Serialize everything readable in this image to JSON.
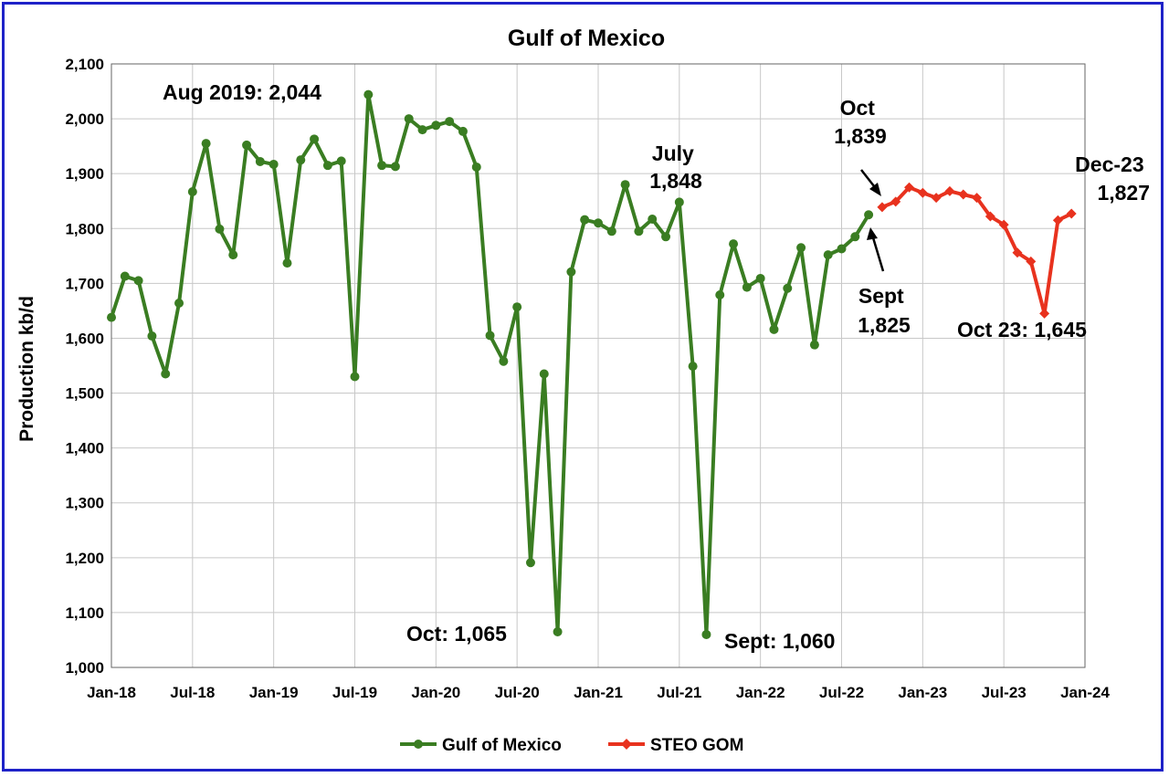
{
  "chart_data": {
    "type": "line",
    "title": "Gulf of Mexico",
    "ylabel": "Production kb/d",
    "xlabel": "",
    "ylim": [
      1000,
      2100
    ],
    "yticks": [
      "1,000",
      "1,100",
      "1,200",
      "1,300",
      "1,400",
      "1,500",
      "1,600",
      "1,700",
      "1,800",
      "1,900",
      "2,000",
      "2,100"
    ],
    "xticks": [
      "Jan-18",
      "Jul-18",
      "Jan-19",
      "Jul-19",
      "Jan-20",
      "Jul-20",
      "Jan-21",
      "Jul-21",
      "Jan-22",
      "Jul-22",
      "Jan-23",
      "Jul-23",
      "Jan-24"
    ],
    "grid": true,
    "legend_position": "bottom",
    "series": [
      {
        "name": "Gulf of Mexico",
        "color": "#3a7d22",
        "marker": "circle",
        "start": "Jan-18",
        "values": [
          1638,
          1713,
          1705,
          1604,
          1535,
          1664,
          1867,
          1955,
          1799,
          1752,
          1952,
          1922,
          1917,
          1737,
          1925,
          1963,
          1915,
          1923,
          1530,
          2044,
          1915,
          1913,
          2000,
          1980,
          1988,
          1995,
          1977,
          1912,
          1605,
          1558,
          1657,
          1191,
          1535,
          1065,
          1721,
          1816,
          1810,
          1795,
          1880,
          1795,
          1817,
          1785,
          1848,
          1549,
          1060,
          1679,
          1772,
          1693,
          1709,
          1616,
          1691,
          1765,
          1588,
          1752,
          1763,
          1785,
          1825
        ]
      },
      {
        "name": "STEO GOM",
        "color": "#e8321e",
        "marker": "diamond",
        "start": "Oct-22",
        "values": [
          1839,
          1849,
          1875,
          1865,
          1856,
          1868,
          1862,
          1856,
          1822,
          1807,
          1756,
          1740,
          1645,
          1815,
          1827
        ]
      }
    ],
    "annotations": [
      {
        "id": "aug2019",
        "text": "Aug 2019: 2,044"
      },
      {
        "id": "july",
        "text": "July 1,848",
        "lines": [
          "July",
          "1,848"
        ]
      },
      {
        "id": "oct",
        "text": "Oct 1,839",
        "lines": [
          "Oct",
          "1,839"
        ]
      },
      {
        "id": "sept",
        "text": "Sept 1,825",
        "lines": [
          "Sept",
          "1,825"
        ]
      },
      {
        "id": "dec23",
        "text": "Dec-23 1,827",
        "lines": [
          "Dec-23",
          "1,827"
        ]
      },
      {
        "id": "oct23",
        "text": "Oct 23: 1,645"
      },
      {
        "id": "oct1065",
        "text": "Oct: 1,065"
      },
      {
        "id": "sept1060",
        "text": "Sept: 1,060"
      }
    ]
  }
}
